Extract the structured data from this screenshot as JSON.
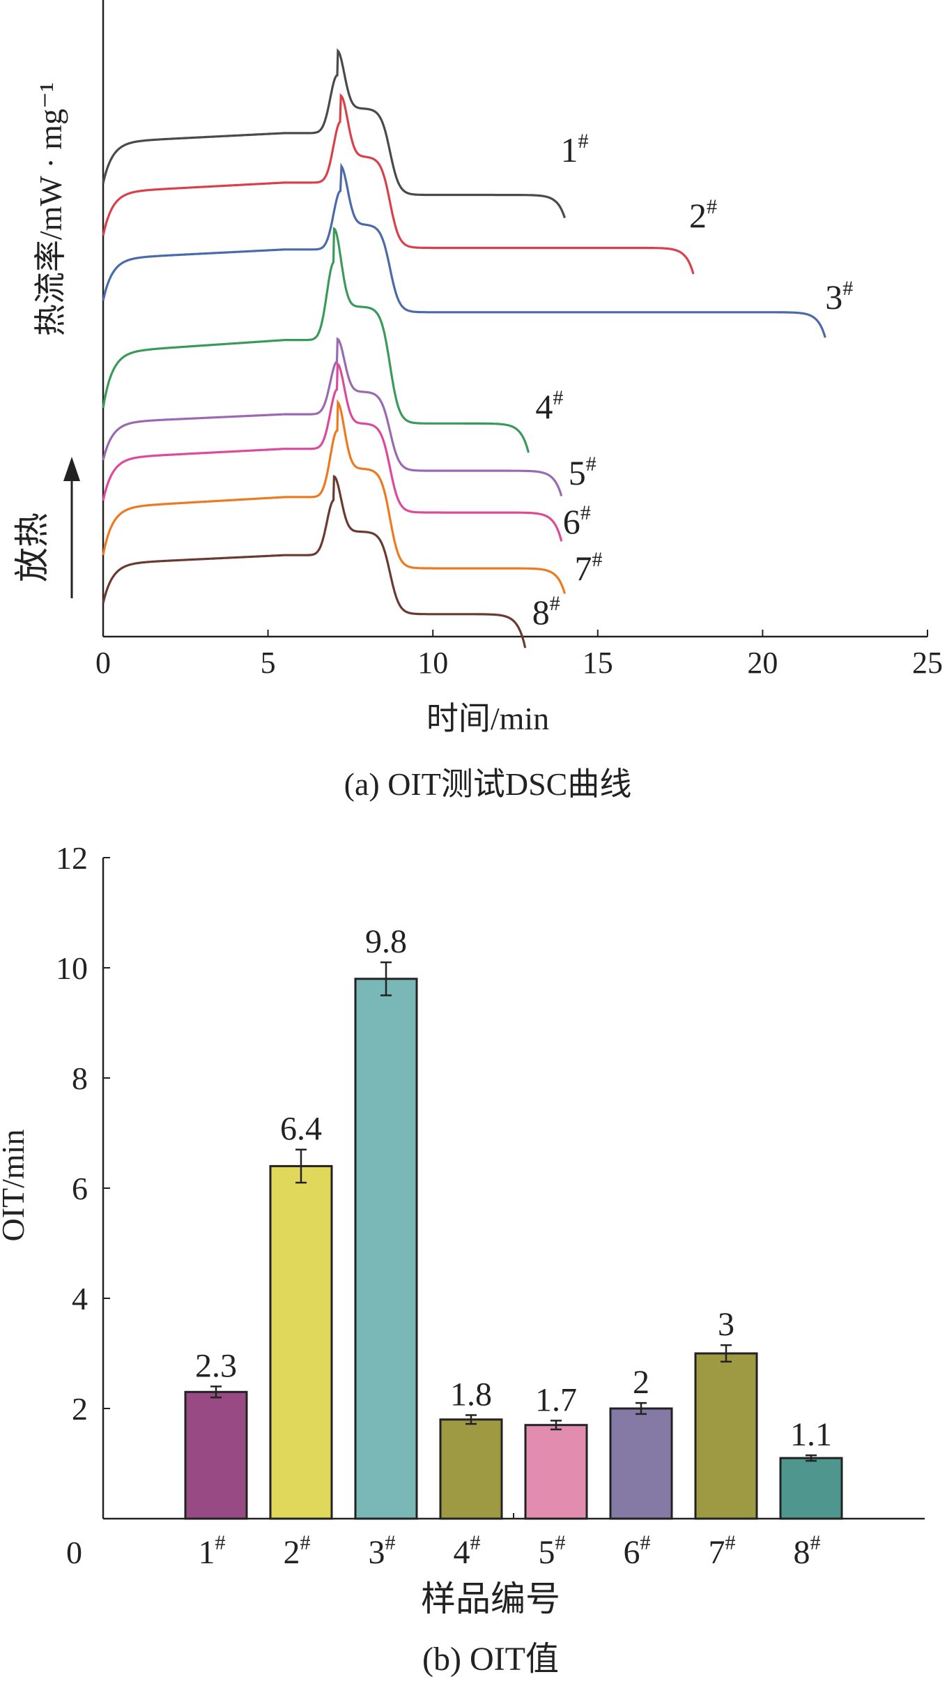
{
  "chart_data": [
    {
      "type": "line",
      "caption": "(a) OIT测试DSC曲线",
      "xlabel": "时间/min",
      "ylabel": "热流率/mW · mg⁻¹",
      "direction_label": "放热",
      "xlim": [
        0,
        25
      ],
      "xticks": [
        "0",
        "5",
        "10",
        "15",
        "20",
        "25"
      ],
      "grid": false,
      "series": [
        {
          "name": "1#",
          "label_main": "1",
          "label_sup": "#",
          "color": "#4a4a4a",
          "end_time": 14.0,
          "peak_time": 7.1
        },
        {
          "name": "2#",
          "label_main": "2",
          "label_sup": "#",
          "color": "#d9404a",
          "end_time": 17.9,
          "peak_time": 7.2
        },
        {
          "name": "3#",
          "label_main": "3",
          "label_sup": "#",
          "color": "#4a6aaa",
          "end_time": 21.9,
          "peak_time": 7.2
        },
        {
          "name": "4#",
          "label_main": "4",
          "label_sup": "#",
          "color": "#3a9a5a",
          "end_time": 12.9,
          "peak_time": 7.0
        },
        {
          "name": "5#",
          "label_main": "5",
          "label_sup": "#",
          "color": "#9a6ab0",
          "end_time": 13.9,
          "peak_time": 7.1
        },
        {
          "name": "6#",
          "label_main": "6",
          "label_sup": "#",
          "color": "#dd4a9a",
          "end_time": 13.9,
          "peak_time": 7.1
        },
        {
          "name": "7#",
          "label_main": "7",
          "label_sup": "#",
          "color": "#ee7a20",
          "end_time": 14.0,
          "peak_time": 7.1
        },
        {
          "name": "8#",
          "label_main": "8",
          "label_sup": "#",
          "color": "#6a3a30",
          "end_time": 12.8,
          "peak_time": 7.0
        }
      ]
    },
    {
      "type": "bar",
      "caption": "(b) OIT值",
      "xlabel": "样品编号",
      "ylabel": "OIT/min",
      "ylim": [
        0,
        12
      ],
      "yticks": [
        "0",
        "2",
        "4",
        "6",
        "8",
        "10",
        "12"
      ],
      "categories": [
        "1#",
        "2#",
        "3#",
        "4#",
        "5#",
        "6#",
        "7#",
        "8#"
      ],
      "category_main": [
        "1",
        "2",
        "3",
        "4",
        "5",
        "6",
        "7",
        "8"
      ],
      "category_sup": [
        "#",
        "#",
        "#",
        "#",
        "#",
        "#",
        "#",
        "#"
      ],
      "values": [
        2.3,
        6.4,
        9.8,
        1.8,
        1.7,
        2.0,
        3.0,
        1.1
      ],
      "value_labels": [
        "2.3",
        "6.4",
        "9.8",
        "1.8",
        "1.7",
        "2",
        "3",
        "1.1"
      ],
      "errors": [
        0.1,
        0.3,
        0.3,
        0.08,
        0.08,
        0.1,
        0.15,
        0.05
      ],
      "colors": [
        "#984a84",
        "#e0d85a",
        "#7ab8b8",
        "#9e9a44",
        "#e28cb0",
        "#857aa6",
        "#9e9a44",
        "#4e968e"
      ],
      "grid": false
    }
  ]
}
